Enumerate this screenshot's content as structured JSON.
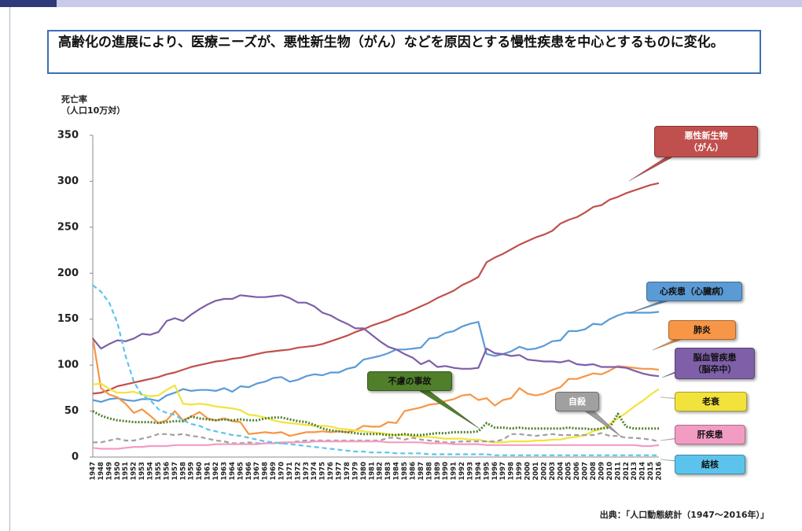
{
  "header": {
    "text": "高齢化の進展により、医療ニーズが、悪性新生物（がん）などを原因とする慢性疾患を中心とするものに変化。"
  },
  "chart_data": {
    "type": "line",
    "y_label": [
      "死亡率",
      "（人口10万対）"
    ],
    "source": "出典：「人口動態統計（1947～2016年）」",
    "x": [
      1947,
      1948,
      1949,
      1950,
      1951,
      1952,
      1953,
      1954,
      1955,
      1956,
      1957,
      1958,
      1959,
      1960,
      1961,
      1962,
      1963,
      1964,
      1965,
      1966,
      1967,
      1968,
      1969,
      1970,
      1971,
      1972,
      1973,
      1974,
      1975,
      1976,
      1977,
      1978,
      1979,
      1980,
      1981,
      1982,
      1983,
      1984,
      1985,
      1986,
      1987,
      1988,
      1989,
      1990,
      1991,
      1992,
      1993,
      1994,
      1995,
      1996,
      1997,
      1998,
      1999,
      2000,
      2001,
      2002,
      2003,
      2004,
      2005,
      2006,
      2007,
      2008,
      2009,
      2010,
      2011,
      2012,
      2013,
      2014,
      2015,
      2016
    ],
    "xlim": [
      1947,
      2016
    ],
    "ylim": [
      0,
      350
    ],
    "yticks": [
      0,
      50,
      100,
      150,
      200,
      250,
      300,
      350
    ],
    "grid": false,
    "series": [
      {
        "name": "悪性新生物（がん）",
        "color": "#c0504d",
        "style": "solid",
        "values": [
          69,
          70,
          73,
          77,
          79,
          81,
          83,
          85,
          87,
          90,
          92,
          95,
          98,
          100,
          102,
          104,
          105,
          107,
          108,
          110,
          112,
          114,
          115,
          116,
          117,
          119,
          120,
          121,
          123,
          126,
          129,
          132,
          136,
          139,
          143,
          146,
          149,
          153,
          156,
          160,
          164,
          168,
          173,
          177,
          181,
          187,
          191,
          196,
          212,
          217,
          221,
          226,
          231,
          235,
          239,
          242,
          246,
          254,
          258,
          261,
          266,
          272,
          274,
          280,
          283,
          287,
          290,
          293,
          296,
          298
        ]
      },
      {
        "name": "心疾患（心臓病）",
        "color": "#5b9bd5",
        "style": "solid",
        "values": [
          62,
          60,
          63,
          64,
          62,
          61,
          63,
          63,
          61,
          67,
          70,
          74,
          72,
          73,
          73,
          72,
          75,
          71,
          77,
          76,
          80,
          82,
          86,
          87,
          82,
          84,
          88,
          90,
          89,
          92,
          92,
          96,
          98,
          106,
          108,
          110,
          113,
          117,
          117,
          118,
          119,
          129,
          130,
          135,
          137,
          142,
          145,
          147,
          112,
          110,
          112,
          115,
          120,
          117,
          118,
          121,
          126,
          127,
          137,
          137,
          139,
          145,
          144,
          150,
          154,
          157,
          157,
          157,
          157,
          158
        ]
      },
      {
        "name": "肺炎",
        "color": "#f79646",
        "style": "solid",
        "values": [
          130,
          75,
          68,
          65,
          58,
          48,
          52,
          45,
          37,
          40,
          50,
          40,
          44,
          49,
          42,
          40,
          42,
          39,
          38,
          25,
          26,
          27,
          26,
          27,
          23,
          25,
          27,
          27,
          28,
          27,
          28,
          27,
          29,
          34,
          33,
          33,
          38,
          37,
          50,
          52,
          54,
          57,
          58,
          61,
          63,
          67,
          68,
          62,
          64,
          56,
          62,
          64,
          75,
          69,
          67,
          69,
          73,
          76,
          85,
          85,
          88,
          91,
          90,
          94,
          99,
          98,
          97,
          96,
          96,
          95
        ]
      },
      {
        "name": "脳血管疾患（脳卒中）",
        "color": "#7e5fa8",
        "style": "solid",
        "values": [
          129,
          118,
          123,
          127,
          126,
          129,
          134,
          133,
          136,
          148,
          151,
          148,
          155,
          161,
          166,
          170,
          172,
          172,
          176,
          175,
          174,
          174,
          175,
          176,
          173,
          168,
          168,
          164,
          157,
          154,
          149,
          145,
          140,
          140,
          133,
          126,
          120,
          117,
          112,
          108,
          101,
          105,
          98,
          99,
          97,
          96,
          96,
          97,
          118,
          113,
          112,
          110,
          111,
          106,
          105,
          104,
          104,
          103,
          105,
          101,
          100,
          101,
          98,
          98,
          98,
          97,
          94,
          91,
          89,
          88
        ]
      },
      {
        "name": "老衰",
        "color": "#f2e33c",
        "style": "solid",
        "values": [
          79,
          80,
          74,
          70,
          70,
          71,
          68,
          66,
          67,
          73,
          78,
          58,
          57,
          58,
          57,
          55,
          54,
          53,
          51,
          46,
          45,
          43,
          40,
          38,
          37,
          36,
          35,
          34,
          34,
          33,
          31,
          30,
          29,
          28,
          27,
          26,
          25,
          24,
          24,
          23,
          22,
          22,
          21,
          20,
          20,
          20,
          19,
          19,
          17,
          16,
          16,
          17,
          17,
          17,
          18,
          18,
          19,
          19,
          21,
          22,
          24,
          28,
          31,
          36,
          42,
          48,
          55,
          61,
          68,
          74
        ]
      },
      {
        "name": "不慮の事故",
        "color": "#4f7f2a",
        "style": "dotted",
        "values": [
          50,
          45,
          42,
          40,
          39,
          38,
          38,
          38,
          37,
          38,
          39,
          39,
          44,
          42,
          41,
          40,
          41,
          40,
          41,
          40,
          40,
          42,
          43,
          43,
          41,
          39,
          38,
          35,
          31,
          29,
          28,
          27,
          26,
          25,
          25,
          25,
          24,
          24,
          25,
          24,
          24,
          25,
          26,
          26,
          27,
          27,
          27,
          28,
          37,
          32,
          32,
          31,
          32,
          31,
          31,
          31,
          31,
          31,
          32,
          31,
          31,
          30,
          31,
          32,
          47,
          33,
          31,
          31,
          31,
          31
        ]
      },
      {
        "name": "自殺",
        "color": "#a0a0a0",
        "style": "dashed",
        "values": [
          16,
          16,
          18,
          20,
          18,
          18,
          20,
          22,
          25,
          25,
          24,
          25,
          23,
          22,
          20,
          18,
          17,
          15,
          15,
          16,
          15,
          15,
          15,
          15,
          16,
          17,
          18,
          18,
          18,
          18,
          18,
          18,
          18,
          18,
          18,
          18,
          21,
          21,
          19,
          21,
          19,
          18,
          17,
          16,
          16,
          17,
          17,
          17,
          17,
          17,
          19,
          25,
          25,
          24,
          23,
          24,
          25,
          24,
          24,
          24,
          24,
          24,
          26,
          23,
          23,
          21,
          21,
          20,
          19,
          17
        ]
      },
      {
        "name": "肝疾患",
        "color": "#f39cc3",
        "style": "solid",
        "values": [
          10,
          9,
          9,
          9,
          10,
          11,
          11,
          12,
          12,
          12,
          13,
          13,
          13,
          13,
          13,
          14,
          14,
          14,
          14,
          14,
          14,
          15,
          15,
          16,
          16,
          16,
          16,
          17,
          17,
          17,
          17,
          17,
          17,
          17,
          17,
          17,
          16,
          16,
          16,
          16,
          16,
          15,
          15,
          15,
          14,
          14,
          14,
          14,
          13,
          13,
          13,
          13,
          13,
          13,
          13,
          13,
          13,
          13,
          13,
          13,
          13,
          13,
          13,
          13,
          13,
          13,
          13,
          12,
          12,
          13
        ]
      },
      {
        "name": "結核",
        "color": "#5cc4ec",
        "style": "dashed",
        "values": [
          187,
          180,
          168,
          146,
          110,
          82,
          67,
          62,
          52,
          48,
          46,
          40,
          36,
          34,
          30,
          28,
          26,
          24,
          23,
          21,
          19,
          17,
          16,
          15,
          14,
          13,
          12,
          11,
          10,
          9,
          8,
          7,
          6,
          6,
          5,
          5,
          5,
          4,
          4,
          4,
          4,
          3,
          3,
          3,
          3,
          3,
          3,
          3,
          3,
          2,
          2,
          2,
          2,
          2,
          2,
          2,
          2,
          2,
          2,
          2,
          2,
          2,
          2,
          2,
          2,
          2,
          2,
          2,
          2,
          2
        ]
      }
    ]
  }
}
